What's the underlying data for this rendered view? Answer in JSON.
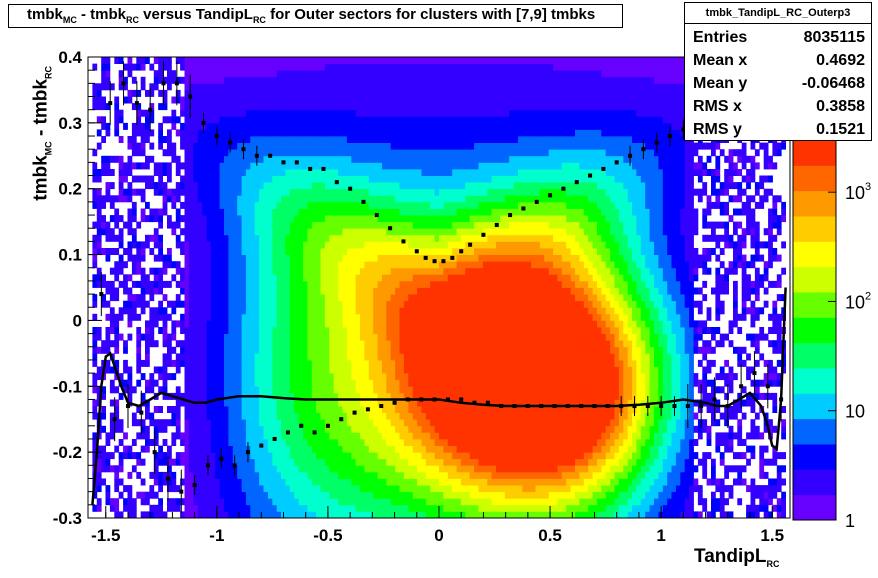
{
  "title": {
    "part1": "tmbk",
    "sub1": "MC",
    "part2": " - tmbk",
    "sub2": "RC",
    "part3": " versus TandipL",
    "sub3": "RC",
    "part4": " for Outer sectors for clusters with [7,9] tmbks"
  },
  "stats": {
    "name": "tmbk_TandipL_RC_Outerp3",
    "rows": [
      {
        "label": "Entries",
        "value": "8035115"
      },
      {
        "label": "Mean x",
        "value": "0.4692"
      },
      {
        "label": "Mean y",
        "value": "-0.06468"
      },
      {
        "label": "RMS x",
        "value": "0.3858"
      },
      {
        "label": "RMS y",
        "value": "0.1521"
      }
    ]
  },
  "chart_data": {
    "type": "heatmap",
    "xlabel": "TandipL",
    "xlabel_sub": "RC",
    "ylabel": "tmbk",
    "ylabel_sub1": "MC",
    "ylabel_mid": " - tmbk",
    "ylabel_sub2": "RC",
    "xlim": [
      -1.58,
      1.58
    ],
    "ylim": [
      -0.3,
      0.4
    ],
    "x_ticks": [
      -1.5,
      -1,
      -0.5,
      0,
      0.5,
      1,
      1.5
    ],
    "x_tick_labels": [
      "-1.5",
      "-1",
      "-0.5",
      "0",
      "0.5",
      "1",
      "1.5"
    ],
    "y_ticks": [
      -0.3,
      -0.2,
      -0.1,
      0,
      0.1,
      0.2,
      0.3,
      0.4
    ],
    "y_tick_labels": [
      "-0.3",
      "-0.2",
      "-0.1",
      "0",
      "0.1",
      "0.2",
      "0.3",
      "0.4"
    ],
    "colorbar": {
      "scale": "log",
      "range": [
        1,
        3000
      ],
      "tick_labels": [
        {
          "base": "1",
          "exp": "",
          "value": 1
        },
        {
          "base": "10",
          "exp": "",
          "value": 10
        },
        {
          "base": "10",
          "exp": "2",
          "value": 100
        },
        {
          "base": "10",
          "exp": "3",
          "value": 1000
        }
      ],
      "colors": [
        "#6600ff",
        "#3300ff",
        "#0000ff",
        "#0066ff",
        "#00ccff",
        "#00ffcc",
        "#00ff66",
        "#00ff00",
        "#66ff00",
        "#ccff00",
        "#ffff00",
        "#ffcc00",
        "#ff9900",
        "#ff6600",
        "#ff3300"
      ]
    },
    "series": [
      {
        "kind": "points_upper",
        "x": [
          -1.48,
          -1.42,
          -1.36,
          -1.3,
          -1.24,
          -1.18,
          -1.12,
          -1.06,
          -1.0,
          -0.94,
          -0.88,
          -0.82,
          -0.76,
          -0.7,
          -0.64,
          -0.58,
          -0.52,
          -0.46,
          -0.4,
          -0.34,
          -0.28,
          -0.22,
          -0.16,
          -0.1,
          -0.06,
          -0.02,
          0.02,
          0.06,
          0.1,
          0.14,
          0.2,
          0.26,
          0.32,
          0.38,
          0.44,
          0.5,
          0.56,
          0.62,
          0.68,
          0.74,
          0.8,
          0.86,
          0.92,
          0.98,
          1.04,
          1.1,
          1.16,
          1.22,
          1.28,
          1.34,
          1.4,
          1.46
        ],
        "y": [
          0.33,
          0.36,
          0.33,
          0.32,
          0.36,
          0.36,
          0.34,
          0.3,
          0.28,
          0.27,
          0.26,
          0.25,
          0.25,
          0.24,
          0.24,
          0.23,
          0.23,
          0.21,
          0.2,
          0.18,
          0.16,
          0.14,
          0.12,
          0.105,
          0.095,
          0.09,
          0.09,
          0.095,
          0.105,
          0.115,
          0.13,
          0.145,
          0.16,
          0.17,
          0.18,
          0.19,
          0.2,
          0.21,
          0.22,
          0.23,
          0.24,
          0.25,
          0.26,
          0.27,
          0.28,
          0.29,
          0.31,
          0.32,
          0.33,
          0.34,
          0.35,
          0.35
        ]
      },
      {
        "kind": "points_lower",
        "x": [
          -1.52,
          -1.46,
          -1.4,
          -1.34,
          -1.28,
          -1.22,
          -1.16,
          -1.1,
          -1.04,
          -0.98,
          -0.92,
          -0.86,
          -0.8,
          -0.74,
          -0.68,
          -0.62,
          -0.56,
          -0.5,
          -0.44,
          -0.38,
          -0.32,
          -0.26,
          -0.2,
          -0.14,
          -0.08,
          -0.02,
          0.04,
          0.1,
          0.16,
          0.22,
          0.28,
          0.34,
          0.4,
          0.46,
          0.52,
          0.58,
          0.64,
          0.7,
          0.76,
          0.82,
          0.88,
          0.94,
          1.0,
          1.06,
          1.12,
          1.18,
          1.24,
          1.3,
          1.36,
          1.42,
          1.48,
          1.54
        ],
        "y": [
          0.04,
          -0.15,
          -0.13,
          -0.14,
          -0.2,
          -0.24,
          -0.26,
          -0.25,
          -0.22,
          -0.21,
          -0.22,
          -0.2,
          -0.19,
          -0.18,
          -0.17,
          -0.16,
          -0.17,
          -0.16,
          -0.15,
          -0.14,
          -0.135,
          -0.13,
          -0.125,
          -0.12,
          -0.12,
          -0.12,
          -0.12,
          -0.12,
          -0.125,
          -0.125,
          -0.13,
          -0.13,
          -0.13,
          -0.13,
          -0.13,
          -0.13,
          -0.13,
          -0.13,
          -0.13,
          -0.13,
          -0.13,
          -0.13,
          -0.13,
          -0.13,
          -0.13,
          -0.13,
          -0.12,
          -0.13,
          -0.1,
          -0.08,
          -0.1,
          -0.12
        ]
      },
      {
        "kind": "fit_curve",
        "x": [
          -1.56,
          -1.54,
          -1.52,
          -1.5,
          -1.48,
          -1.46,
          -1.43,
          -1.4,
          -1.35,
          -1.3,
          -1.25,
          -1.2,
          -1.15,
          -1.1,
          -1.05,
          -1.0,
          -0.9,
          -0.8,
          -0.7,
          -0.6,
          -0.5,
          -0.4,
          -0.3,
          -0.2,
          -0.1,
          0.0,
          0.1,
          0.2,
          0.3,
          0.4,
          0.5,
          0.6,
          0.7,
          0.8,
          0.9,
          1.0,
          1.1,
          1.2,
          1.25,
          1.3,
          1.35,
          1.4,
          1.45,
          1.48,
          1.5,
          1.52,
          1.54,
          1.56
        ],
        "y": [
          -0.28,
          -0.2,
          -0.1,
          -0.055,
          -0.05,
          -0.07,
          -0.1,
          -0.125,
          -0.13,
          -0.12,
          -0.11,
          -0.115,
          -0.12,
          -0.125,
          -0.125,
          -0.12,
          -0.115,
          -0.115,
          -0.118,
          -0.12,
          -0.12,
          -0.12,
          -0.12,
          -0.12,
          -0.12,
          -0.12,
          -0.125,
          -0.128,
          -0.13,
          -0.13,
          -0.13,
          -0.13,
          -0.13,
          -0.13,
          -0.128,
          -0.125,
          -0.12,
          -0.125,
          -0.13,
          -0.13,
          -0.12,
          -0.11,
          -0.13,
          -0.16,
          -0.19,
          -0.195,
          -0.12,
          0.05
        ]
      }
    ]
  }
}
